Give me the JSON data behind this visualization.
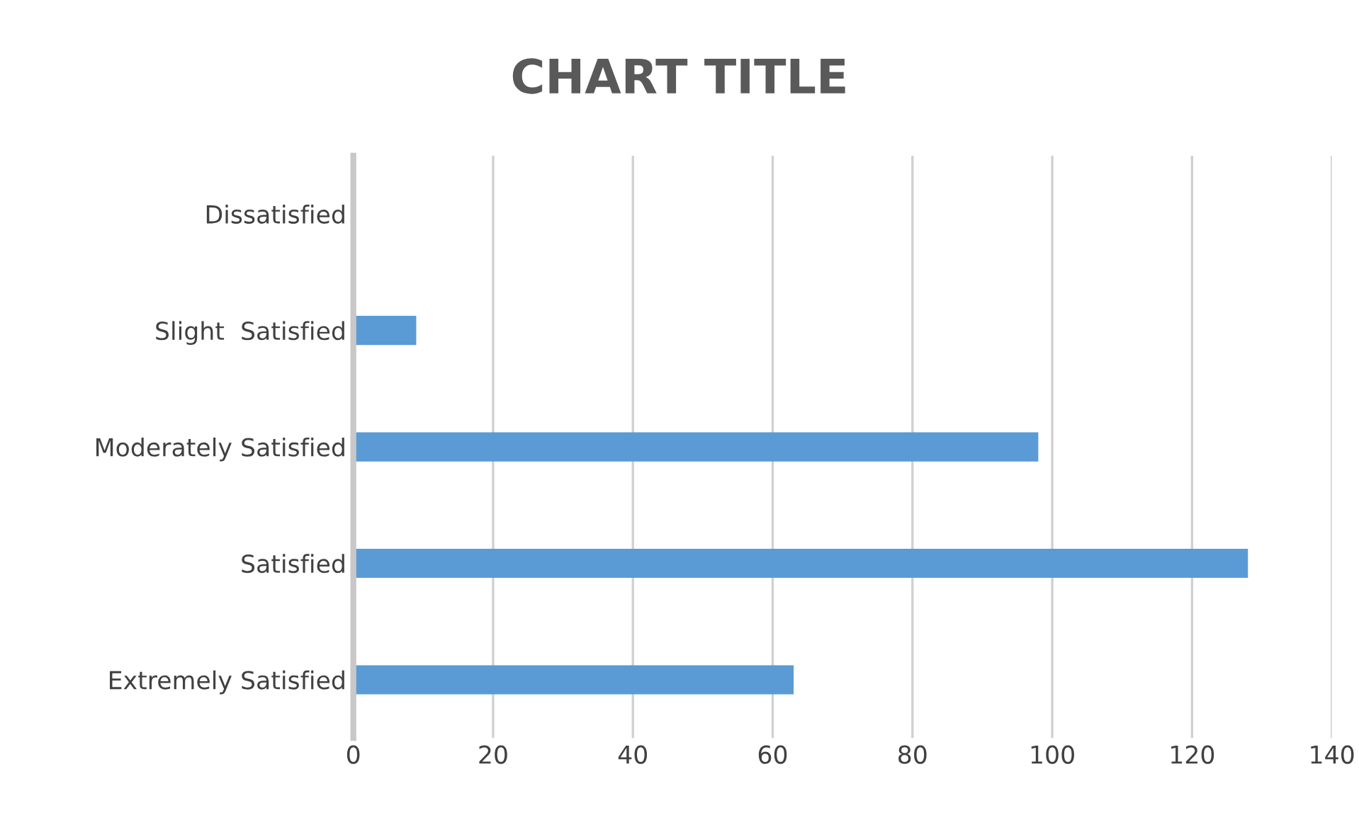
{
  "chart_data": {
    "type": "bar",
    "orientation": "horizontal",
    "title": "CHART TITLE",
    "categories": [
      "Dissatisfied",
      "Slight  Satisfied",
      "Moderately Satisfied",
      "Satisfied",
      "Extremely Satisfied"
    ],
    "values": [
      0,
      9,
      98,
      128,
      63
    ],
    "color": "#5b9bd5",
    "xlim": [
      0,
      140
    ],
    "xticks": [
      0,
      20,
      40,
      60,
      80,
      100,
      120,
      140
    ],
    "grid": "x"
  }
}
